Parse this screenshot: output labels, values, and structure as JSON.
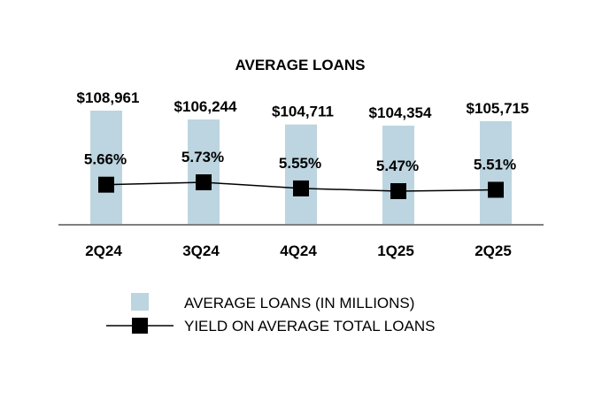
{
  "chart_data": {
    "type": "bar+line",
    "title": "AVERAGE LOANS",
    "categories": [
      "2Q24",
      "3Q24",
      "4Q24",
      "1Q25",
      "2Q25"
    ],
    "bar_series": {
      "name": "AVERAGE LOANS (IN MILLIONS)",
      "values": [
        108961,
        106244,
        104711,
        104354,
        105715
      ],
      "labels": [
        "$108,961",
        "$106,244",
        "$104,711",
        "$104,354",
        "$105,715"
      ],
      "color": "#bcd5e0"
    },
    "line_series": {
      "name": "YIELD ON AVERAGE TOTAL LOANS",
      "values": [
        5.66,
        5.73,
        5.55,
        5.47,
        5.51
      ],
      "labels": [
        "5.66%",
        "5.73%",
        "5.55%",
        "5.47%",
        "5.51%"
      ],
      "color": "#000000"
    },
    "legend_position": "bottom",
    "grid": false
  }
}
